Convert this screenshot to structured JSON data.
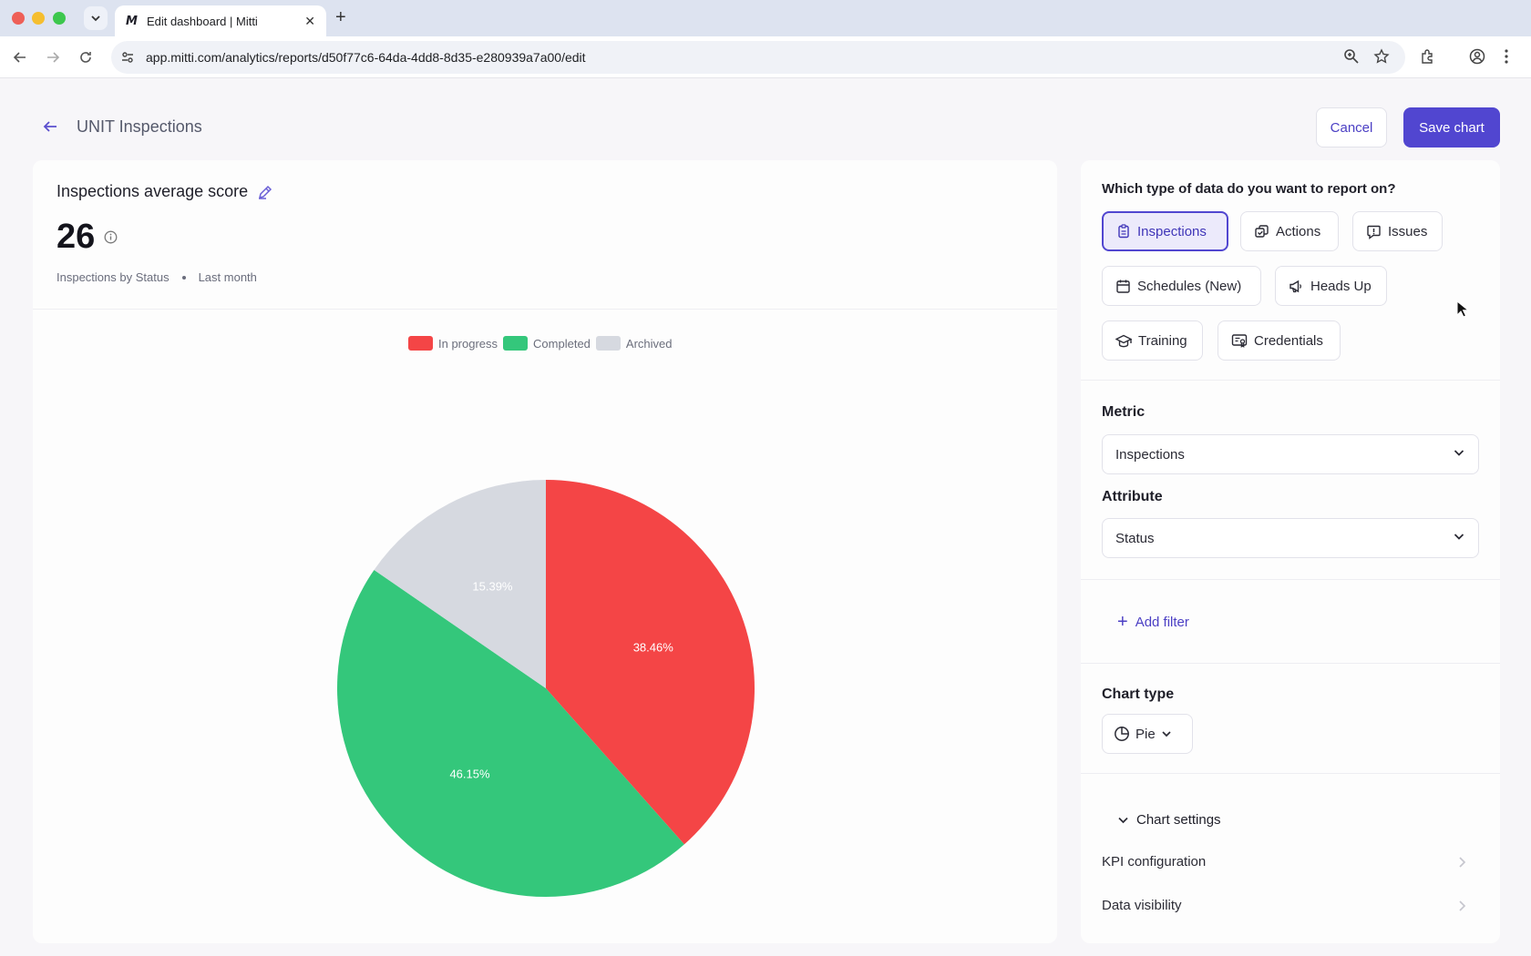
{
  "browser": {
    "tab_title": "Edit dashboard | Mitti",
    "tab_favicon": "M",
    "url": "app.mitti.com/analytics/reports/d50f77c6-64da-4dd8-8d35-e280939a7a00/edit"
  },
  "header": {
    "title": "UNIT Inspections",
    "cancel_label": "Cancel",
    "save_label": "Save chart",
    "accent_color": "#5146d0"
  },
  "chart_panel": {
    "title": "Inspections average score",
    "kpi_value": "26",
    "subtitle_source": "Inspections by Status",
    "subtitle_period": "Last month"
  },
  "chart_data": {
    "type": "pie",
    "categories": [
      "In progress",
      "Completed",
      "Archived"
    ],
    "values": [
      38.46,
      46.15,
      15.39
    ],
    "labels": [
      "38.46%",
      "46.15%",
      "15.39%"
    ],
    "colors": [
      "#f44546",
      "#34c77b",
      "#d6d9e0"
    ],
    "legend_position": "top"
  },
  "config": {
    "question": "Which type of data do you want to report on?",
    "data_types": [
      {
        "label": "Inspections",
        "icon": "clipboard-icon",
        "selected": true
      },
      {
        "label": "Actions",
        "icon": "actions-icon",
        "selected": false
      },
      {
        "label": "Issues",
        "icon": "issue-icon",
        "selected": false
      },
      {
        "label": "Schedules (New)",
        "icon": "calendar-icon",
        "selected": false
      },
      {
        "label": "Heads Up",
        "icon": "megaphone-icon",
        "selected": false
      },
      {
        "label": "Training",
        "icon": "graduation-cap-icon",
        "selected": false
      },
      {
        "label": "Credentials",
        "icon": "credential-icon",
        "selected": false
      }
    ],
    "metric_label": "Metric",
    "metric_value": "Inspections",
    "attribute_label": "Attribute",
    "attribute_value": "Status",
    "add_filter_label": "Add filter",
    "chart_type_label": "Chart type",
    "chart_type_value": "Pie",
    "chart_settings_label": "Chart settings",
    "kpi_config_label": "KPI configuration",
    "data_visibility_label": "Data visibility"
  }
}
